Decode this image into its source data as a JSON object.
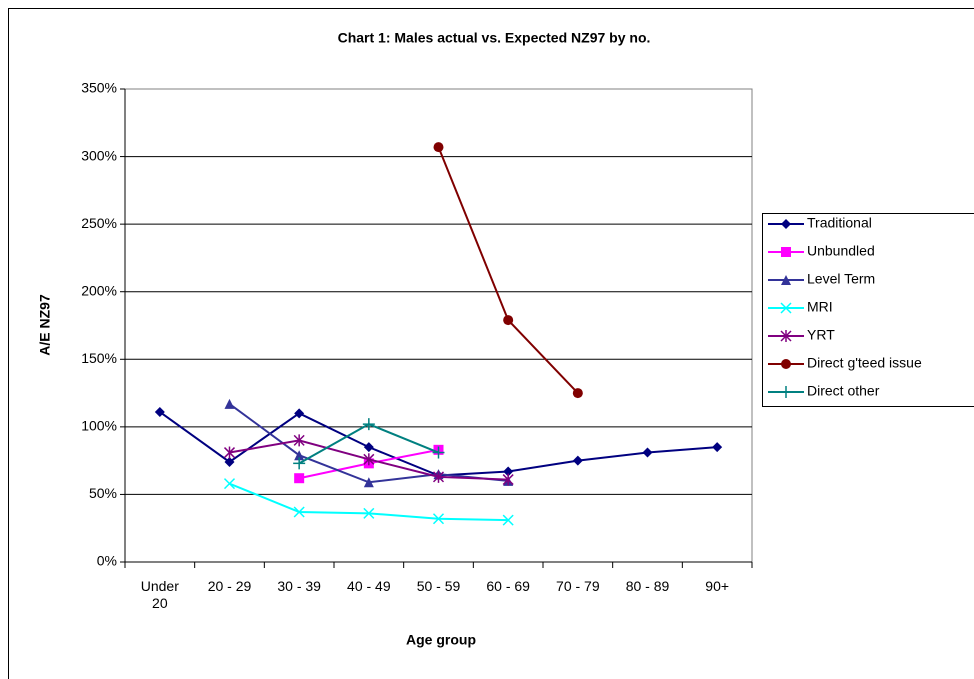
{
  "chart_data": {
    "type": "line",
    "title": "Chart 1: Males actual vs. Expected NZ97 by no.",
    "x_label": "Age group",
    "y_label": "A/E NZ97",
    "categories": [
      "Under 20",
      "20 - 29",
      "30 - 39",
      "40 - 49",
      "50 - 59",
      "60 - 69",
      "70 - 79",
      "80 - 89",
      "90+"
    ],
    "ylim": [
      0,
      350
    ],
    "yticks": [
      {
        "value": 0,
        "label": "0%"
      },
      {
        "value": 50,
        "label": "50%"
      },
      {
        "value": 100,
        "label": "100%"
      },
      {
        "value": 150,
        "label": "150%"
      },
      {
        "value": 200,
        "label": "200%"
      },
      {
        "value": 250,
        "label": "250%"
      },
      {
        "value": 300,
        "label": "300%"
      },
      {
        "value": 350,
        "label": "350%"
      }
    ],
    "grid": true,
    "legend": "right",
    "series": [
      {
        "name": "Traditional",
        "color": "#000080",
        "marker": "diamond",
        "values": [
          111,
          74,
          110,
          85,
          64,
          67,
          75,
          81,
          85
        ]
      },
      {
        "name": "Unbundled",
        "color": "#ff00ff",
        "marker": "square",
        "values": [
          null,
          null,
          62,
          73,
          83,
          null,
          null,
          null,
          null
        ]
      },
      {
        "name": "Level Term",
        "color": "#333399",
        "marker": "triangle",
        "values": [
          null,
          117,
          79,
          59,
          65,
          60,
          null,
          null,
          null
        ]
      },
      {
        "name": "MRI",
        "color": "#00ffff",
        "marker": "x",
        "values": [
          null,
          58,
          37,
          36,
          32,
          31,
          null,
          null,
          null
        ]
      },
      {
        "name": "YRT",
        "color": "#800080",
        "marker": "star",
        "values": [
          null,
          81,
          90,
          76,
          63,
          61,
          null,
          null,
          null
        ]
      },
      {
        "name": "Direct g'teed issue",
        "color": "#800000",
        "marker": "circle",
        "values": [
          null,
          null,
          null,
          null,
          307,
          179,
          125,
          null,
          null
        ]
      },
      {
        "name": "Direct other",
        "color": "#008080",
        "marker": "plus",
        "values": [
          null,
          null,
          73,
          102,
          81,
          null,
          null,
          null,
          null
        ]
      }
    ]
  }
}
